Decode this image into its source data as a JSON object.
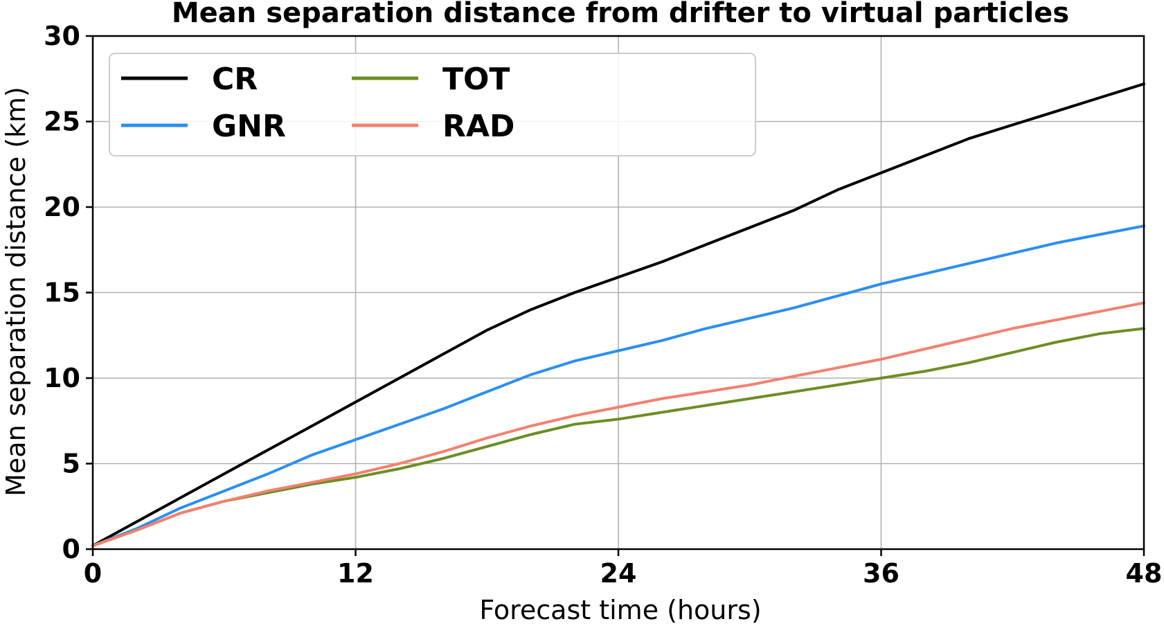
{
  "chart_data": {
    "type": "line",
    "title": "Mean separation distance from drifter to virtual particles",
    "xlabel": "Forecast time (hours)",
    "ylabel": "Mean separation distance (km)",
    "xlim": [
      0,
      48
    ],
    "ylim": [
      0,
      30
    ],
    "xticks": [
      0,
      12,
      24,
      36,
      48
    ],
    "xtick_labels": [
      "0",
      "12",
      "24",
      "36",
      "48"
    ],
    "yticks": [
      0,
      5,
      10,
      15,
      20,
      25,
      30
    ],
    "ytick_labels": [
      "0",
      "5",
      "10",
      "15",
      "20",
      "25",
      "30"
    ],
    "grid": true,
    "legend_position": "top-left",
    "x": [
      0,
      2,
      4,
      6,
      8,
      10,
      12,
      14,
      16,
      18,
      20,
      22,
      24,
      26,
      28,
      30,
      32,
      34,
      36,
      38,
      40,
      42,
      44,
      46,
      48
    ],
    "series": [
      {
        "name": "CR",
        "color": "#000000",
        "values": [
          0.2,
          1.6,
          3.0,
          4.4,
          5.8,
          7.2,
          8.6,
          10.0,
          11.4,
          12.8,
          14.0,
          15.0,
          15.9,
          16.8,
          17.8,
          18.8,
          19.8,
          21.0,
          22.0,
          23.0,
          24.0,
          24.8,
          25.6,
          26.4,
          27.2
        ]
      },
      {
        "name": "GNR",
        "color": "#2b8ff0",
        "values": [
          0.2,
          1.2,
          2.4,
          3.4,
          4.4,
          5.5,
          6.4,
          7.3,
          8.2,
          9.2,
          10.2,
          11.0,
          11.6,
          12.2,
          12.9,
          13.5,
          14.1,
          14.8,
          15.5,
          16.1,
          16.7,
          17.3,
          17.9,
          18.4,
          18.9
        ]
      },
      {
        "name": "TOT",
        "color": "#6b8e23",
        "values": [
          0.2,
          1.1,
          2.1,
          2.8,
          3.3,
          3.8,
          4.2,
          4.7,
          5.3,
          6.0,
          6.7,
          7.3,
          7.6,
          8.0,
          8.4,
          8.8,
          9.2,
          9.6,
          10.0,
          10.4,
          10.9,
          11.5,
          12.1,
          12.6,
          12.9
        ]
      },
      {
        "name": "RAD",
        "color": "#f4806f",
        "values": [
          0.2,
          1.1,
          2.1,
          2.8,
          3.4,
          3.9,
          4.4,
          5.0,
          5.7,
          6.5,
          7.2,
          7.8,
          8.3,
          8.8,
          9.2,
          9.6,
          10.1,
          10.6,
          11.1,
          11.7,
          12.3,
          12.9,
          13.4,
          13.9,
          14.4
        ]
      }
    ]
  }
}
